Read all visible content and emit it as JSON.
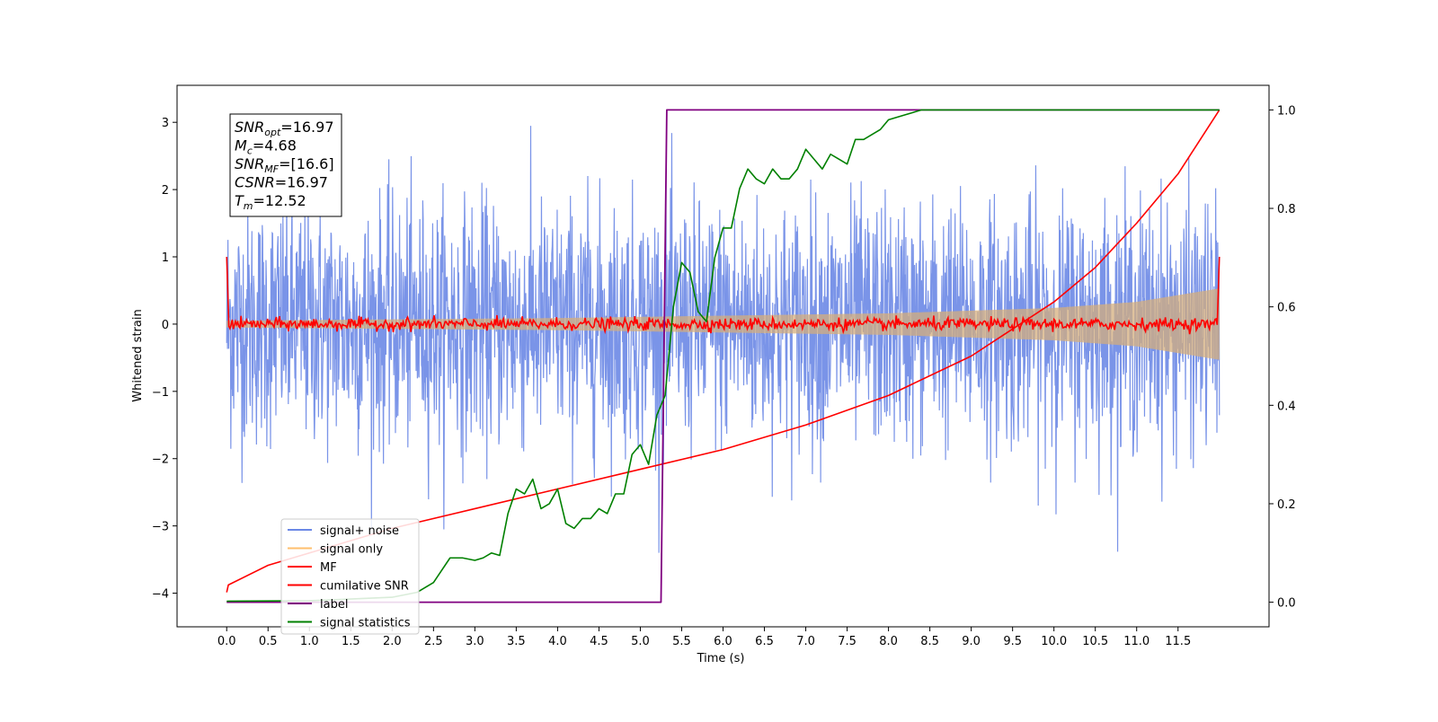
{
  "chart_data": {
    "type": "line",
    "xlabel": "Time (s)",
    "ylabel": "Whitened strain",
    "x_ticks": [
      "0.0",
      "0.5",
      "1.0",
      "1.5",
      "2.0",
      "2.5",
      "3.0",
      "3.5",
      "4.0",
      "4.5",
      "5.0",
      "5.5",
      "6.0",
      "6.5",
      "7.0",
      "7.5",
      "8.0",
      "8.5",
      "9.0",
      "9.5",
      "10.0",
      "10.5",
      "11.0",
      "11.5"
    ],
    "y_ticks_left": [
      "3",
      "2",
      "1",
      "0",
      "−1",
      "−2",
      "−3",
      "−4"
    ],
    "y_ticks_right": [
      "1.0",
      "0.8",
      "0.6",
      "0.4",
      "0.2",
      "0.0"
    ],
    "xlim": [
      -0.6,
      12.6
    ],
    "ylim_left": [
      -4.5,
      3.55
    ],
    "ylim_right": [
      -0.05,
      1.05
    ],
    "grid": false,
    "info_box": {
      "lines": [
        {
          "base": "SNR",
          "sub": "opt",
          "rest": "=16.97"
        },
        {
          "base": "M",
          "sub": "c",
          "rest": "=4.68"
        },
        {
          "base": "SNR",
          "sub": "MF",
          "rest": "=[16.6]"
        },
        {
          "base": "CSNR",
          "sub": "",
          "rest": "=16.97"
        },
        {
          "base": "T",
          "sub": "m",
          "rest": "=12.52"
        }
      ]
    },
    "legend": {
      "placement": "lower-left",
      "entries": [
        {
          "label": "signal+ noise",
          "color": "#6b88e6"
        },
        {
          "label": "signal only",
          "color": "#ffbf6e"
        },
        {
          "label": "MF",
          "color": "#ff0000"
        },
        {
          "label": "cumilative SNR",
          "color": "#ff0000"
        },
        {
          "label": "label",
          "color": "#800080"
        },
        {
          "label": "signal statistics",
          "color": "#008000"
        }
      ]
    },
    "series": [
      {
        "name": "signal+ noise",
        "axis": "left",
        "color": "#6b88e6",
        "note_type": "noise",
        "x_range": [
          0,
          12
        ],
        "amplitude_typical": 0.9,
        "min": -3.4,
        "max": 3.2
      },
      {
        "name": "signal only",
        "axis": "left",
        "color": "#ffbf6e",
        "envelope_x": [
          0,
          4,
          8,
          10,
          11,
          12
        ],
        "envelope_amplitude": [
          0.05,
          0.09,
          0.16,
          0.24,
          0.33,
          0.53
        ]
      },
      {
        "name": "MF",
        "axis": "left",
        "color": "#ff0000",
        "x_range": [
          0,
          12
        ],
        "start": 1.0,
        "baseline": 0.0,
        "end": 1.0
      },
      {
        "name": "cumilative SNR",
        "axis": "right",
        "color": "#ff0000",
        "x": [
          0,
          0.02,
          0.5,
          1,
          2,
          3,
          4,
          5,
          6,
          7,
          8,
          9,
          10,
          10.5,
          11,
          11.5,
          12
        ],
        "y": [
          0.02,
          0.035,
          0.075,
          0.1,
          0.15,
          0.19,
          0.23,
          0.27,
          0.31,
          0.36,
          0.42,
          0.5,
          0.61,
          0.68,
          0.77,
          0.87,
          1.0
        ]
      },
      {
        "name": "label",
        "axis": "right",
        "color": "#800080",
        "x": [
          0,
          5.25,
          5.32,
          12
        ],
        "y": [
          0.0,
          0.0,
          1.0,
          1.0
        ]
      },
      {
        "name": "signal statistics",
        "axis": "right",
        "color": "#008000",
        "x": [
          0,
          1.0,
          2.0,
          2.3,
          2.5,
          2.7,
          2.85,
          3.0,
          3.1,
          3.2,
          3.3,
          3.4,
          3.5,
          3.6,
          3.7,
          3.8,
          3.9,
          4.0,
          4.1,
          4.2,
          4.3,
          4.4,
          4.5,
          4.6,
          4.7,
          4.8,
          4.9,
          5.0,
          5.1,
          5.2,
          5.3,
          5.4,
          5.5,
          5.6,
          5.7,
          5.8,
          5.9,
          6.0,
          6.1,
          6.2,
          6.3,
          6.4,
          6.5,
          6.6,
          6.7,
          6.8,
          6.9,
          7.0,
          7.1,
          7.2,
          7.3,
          7.4,
          7.5,
          7.6,
          7.7,
          7.8,
          7.9,
          8.0,
          8.2,
          8.4,
          8.6,
          9.0,
          10.0,
          11.0,
          12.0
        ],
        "y": [
          0.002,
          0.003,
          0.01,
          0.02,
          0.04,
          0.09,
          0.09,
          0.085,
          0.09,
          0.1,
          0.095,
          0.18,
          0.23,
          0.22,
          0.25,
          0.19,
          0.2,
          0.23,
          0.16,
          0.15,
          0.17,
          0.17,
          0.19,
          0.18,
          0.22,
          0.22,
          0.3,
          0.32,
          0.28,
          0.38,
          0.42,
          0.6,
          0.69,
          0.67,
          0.59,
          0.57,
          0.7,
          0.76,
          0.76,
          0.84,
          0.88,
          0.86,
          0.85,
          0.88,
          0.86,
          0.86,
          0.88,
          0.92,
          0.9,
          0.88,
          0.91,
          0.9,
          0.89,
          0.94,
          0.94,
          0.95,
          0.96,
          0.98,
          0.99,
          1.0,
          1.0,
          1.0,
          1.0,
          1.0,
          1.0
        ]
      }
    ]
  }
}
